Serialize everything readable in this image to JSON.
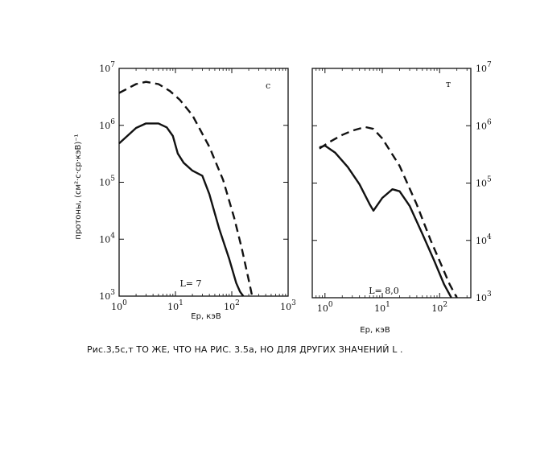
{
  "caption": "Рис.3,5с,т ТО ЖЕ, ЧТО НА РИС. 3.5а, НО ДЛЯ ДРУГИХ ЗНАЧЕНИЙ L .",
  "ylabel": "протоны,  (см²·с·ср·кэВ)⁻¹",
  "chart_data": [
    {
      "type": "line",
      "panel": "c",
      "annotation": "L= 7",
      "xlabel": "Ep, кэВ",
      "ylabel": "протоны,  (см²·с·ср·кэВ)⁻¹",
      "x_scale": "log",
      "y_scale": "log",
      "xlim": [
        1,
        1000
      ],
      "ylim": [
        1000,
        10000000
      ],
      "x_ticks": [
        {
          "base": "10",
          "exp": "0"
        },
        {
          "base": "10",
          "exp": "1"
        },
        {
          "base": "10",
          "exp": "2"
        },
        {
          "base": "10",
          "exp": "3"
        }
      ],
      "y_ticks": [
        {
          "base": "10",
          "exp": "3"
        },
        {
          "base": "10",
          "exp": "4"
        },
        {
          "base": "10",
          "exp": "5"
        },
        {
          "base": "10",
          "exp": "6"
        },
        {
          "base": "10",
          "exp": "7"
        }
      ],
      "series": [
        {
          "style": "dashed",
          "x": [
            1,
            2,
            3,
            5,
            8,
            12,
            20,
            40,
            70,
            110,
            150,
            200,
            230
          ],
          "y": [
            3700000,
            5300000,
            5800000,
            5300000,
            4000000,
            2800000,
            1500000,
            420000,
            110000,
            24000,
            7000,
            1900,
            1000
          ]
        },
        {
          "style": "solid",
          "x": [
            1,
            2,
            3,
            5,
            7,
            9,
            11,
            14,
            20,
            30,
            40,
            60,
            90,
            120,
            140,
            160
          ],
          "y": [
            480000,
            900000,
            1080000,
            1080000,
            920000,
            650000,
            320000,
            220000,
            160000,
            130000,
            62000,
            15000,
            4500,
            1700,
            1200,
            1000
          ]
        }
      ]
    },
    {
      "type": "line",
      "panel": "т",
      "annotation": "L= 8,0",
      "xlabel": "Ep, кэВ",
      "x_scale": "log",
      "y_scale": "log",
      "xlim": [
        0.6,
        350
      ],
      "ylim": [
        1000,
        10000000
      ],
      "x_ticks": [
        {
          "base": "10",
          "exp": "0"
        },
        {
          "base": "10",
          "exp": "1"
        },
        {
          "base": "10",
          "exp": "2"
        }
      ],
      "y_ticks": [
        {
          "base": "10",
          "exp": "3"
        },
        {
          "base": "10",
          "exp": "4"
        },
        {
          "base": "10",
          "exp": "5"
        },
        {
          "base": "10",
          "exp": "6"
        },
        {
          "base": "10",
          "exp": "7"
        }
      ],
      "series": [
        {
          "style": "dashed",
          "x": [
            0.8,
            1.2,
            2,
            3,
            5,
            7,
            10,
            20,
            40,
            70,
            110,
            150,
            200
          ],
          "y": [
            400000,
            520000,
            690000,
            820000,
            950000,
            880000,
            600000,
            200000,
            42000,
            10000,
            3500,
            1700,
            1000
          ]
        },
        {
          "style": "solid",
          "x": [
            0.8,
            1.0,
            1.5,
            2.5,
            4,
            6,
            7,
            10,
            15,
            20,
            30,
            50,
            80,
            120,
            160
          ],
          "y": [
            420000,
            450000,
            340000,
            190000,
            95000,
            43000,
            33000,
            55000,
            78000,
            72000,
            40000,
            13000,
            4500,
            1700,
            1000
          ]
        }
      ]
    }
  ]
}
